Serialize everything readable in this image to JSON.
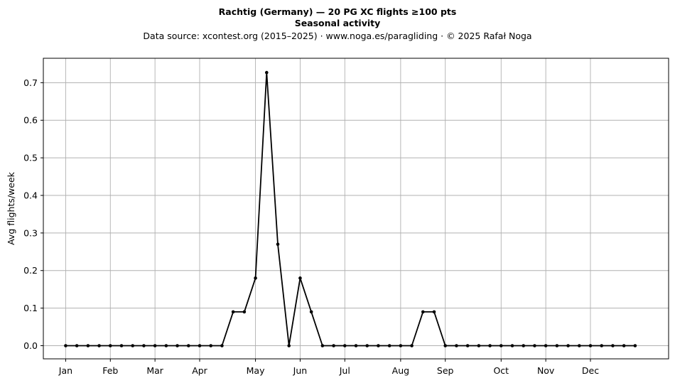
{
  "header": {
    "title": "Rachtig (Germany)  —  20 PG XC flights ≥100 pts",
    "subtitle": "Seasonal activity",
    "source": "Data source: xcontest.org (2015–2025)  ·  www.noga.es/paragliding  ·  © 2025 Rafał Noga"
  },
  "chart_data": {
    "type": "line",
    "title": "Rachtig (Germany)  —  20 PG XC flights ≥100 pts",
    "subtitle": "Seasonal activity",
    "xlabel": "",
    "ylabel": "Avg flights/week",
    "ylim": [
      -0.035,
      0.765
    ],
    "xlim": [
      -2,
      54
    ],
    "grid": true,
    "line_color": "#000000",
    "grid_color": "#b0b0b0",
    "x_ticks": [
      {
        "label": "Jan",
        "x": 0
      },
      {
        "label": "Feb",
        "x": 4
      },
      {
        "label": "Mar",
        "x": 8
      },
      {
        "label": "Apr",
        "x": 12
      },
      {
        "label": "May",
        "x": 17
      },
      {
        "label": "Jun",
        "x": 21
      },
      {
        "label": "Jul",
        "x": 25
      },
      {
        "label": "Aug",
        "x": 30
      },
      {
        "label": "Sep",
        "x": 34
      },
      {
        "label": "Oct",
        "x": 39
      },
      {
        "label": "Nov",
        "x": 43
      },
      {
        "label": "Dec",
        "x": 47
      }
    ],
    "y_ticks": [
      "0.0",
      "0.1",
      "0.2",
      "0.3",
      "0.4",
      "0.5",
      "0.6",
      "0.7"
    ],
    "x": [
      0,
      1,
      2,
      3,
      4,
      5,
      6,
      7,
      8,
      9,
      10,
      11,
      12,
      13,
      14,
      15,
      16,
      17,
      18,
      19,
      20,
      21,
      22,
      23,
      24,
      25,
      26,
      27,
      28,
      29,
      30,
      31,
      32,
      33,
      34,
      35,
      36,
      37,
      38,
      39,
      40,
      41,
      42,
      43,
      44,
      45,
      46,
      47,
      48,
      49,
      50,
      51
    ],
    "values": [
      0,
      0,
      0,
      0,
      0,
      0,
      0,
      0,
      0,
      0,
      0,
      0,
      0,
      0,
      0,
      0.09,
      0.09,
      0.18,
      0.727,
      0.27,
      0,
      0.18,
      0.09,
      0,
      0,
      0,
      0,
      0,
      0,
      0,
      0,
      0,
      0.09,
      0.09,
      0,
      0,
      0,
      0,
      0,
      0,
      0,
      0,
      0,
      0,
      0,
      0,
      0,
      0,
      0,
      0,
      0,
      0
    ]
  }
}
